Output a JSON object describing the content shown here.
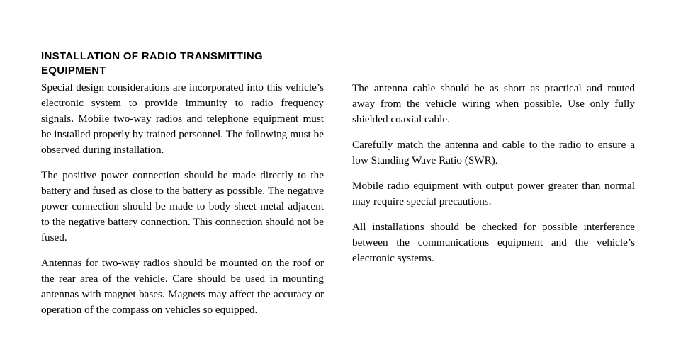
{
  "page": {
    "background_color": "#ffffff",
    "text_color": "#000000",
    "heading_font": "Arial, Helvetica, sans-serif",
    "body_font": "Palatino Linotype, Book Antiqua, Palatino, Georgia, serif",
    "heading_fontsize_pt": 11,
    "body_fontsize_pt": 11.5,
    "columns": 2
  },
  "heading": "INSTALLATION OF RADIO TRANSMITTING EQUIPMENT",
  "left": {
    "p1": "Special design considerations are incorporated into this vehicle’s electronic system to provide immunity to radio frequency signals. Mobile two-way radios and telephone equipment must be installed properly by trained person­nel. The following must be observed during installation.",
    "p2": "The positive power connection should be made directly to the battery and fused as close to the battery as possible. The negative power connection should be made to body sheet metal adjacent to the negative battery connection. This connection should not be fused.",
    "p3": "Antennas for two-way radios should be mounted on the roof or the rear area of the vehicle. Care should be used in mounting antennas with magnet bases. Magnets may affect the accuracy or operation of the compass on vehicles so equipped."
  },
  "right": {
    "p1": "The antenna cable should be as short as practical and routed away from the vehicle wiring when possible. Use only fully shielded coaxial cable.",
    "p2": "Carefully match the antenna and cable to the radio to ensure a low Standing Wave Ratio (SWR).",
    "p3": "Mobile radio equipment with output power greater than normal may require special precautions.",
    "p4": "All installations should be checked for possible interfer­ence between the communications equipment and the vehicle’s electronic systems."
  }
}
